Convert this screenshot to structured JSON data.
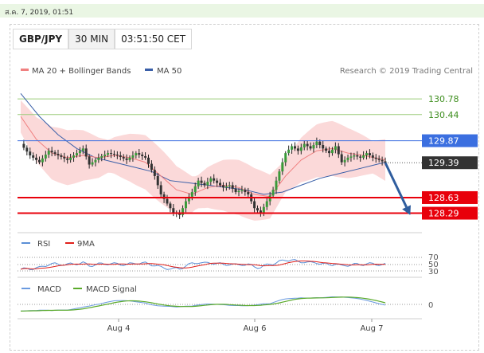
{
  "timestamp": "ส.ค. 7, 2019, 01:51",
  "header": {
    "pair": "GBP/JPY",
    "timeframe": "30 MIN",
    "time": "03:51:50 CET"
  },
  "credit": "Research © 2019 Trading Central",
  "colors": {
    "ma20": "#f08080",
    "ma50": "#3a5fa8",
    "band": "#fbd9d9",
    "resistance_blue": "#3b6fe0",
    "support_red": "#e8000b",
    "target_green": "#9ccc7a",
    "price_dark": "#333333",
    "rsi": "#5b8fd6",
    "rsi_9ma": "#e0201b",
    "macd": "#6a9ae0",
    "macd_signal": "#5aaa2a",
    "arrow": "#2f5d9e"
  },
  "chart_data": [
    {
      "type": "candlestick",
      "legend": [
        "MA 20 + Bollinger Bands",
        "MA 50"
      ],
      "legend_position": "top-left",
      "levels": [
        {
          "value": 130.78,
          "label": "130.78",
          "style": "green-line"
        },
        {
          "value": 130.44,
          "label": "130.44",
          "style": "green-line"
        },
        {
          "value": 129.87,
          "label": "129.87",
          "style": "blue-tag"
        },
        {
          "value": 129.39,
          "label": "129.39",
          "style": "current-price"
        },
        {
          "value": 128.63,
          "label": "128.63",
          "style": "red-tag"
        },
        {
          "value": 128.29,
          "label": "128.29",
          "style": "red-tag"
        }
      ],
      "x_ticks": [
        "Aug 4",
        "Aug 6",
        "Aug 7"
      ],
      "ylim": [
        127.9,
        131.2
      ],
      "close_path": [
        [
          0,
          129.8
        ],
        [
          3,
          129.55
        ],
        [
          6,
          129.4
        ],
        [
          9,
          129.65
        ],
        [
          12,
          129.55
        ],
        [
          15,
          129.45
        ],
        [
          17,
          129.55
        ],
        [
          20,
          129.7
        ],
        [
          22,
          129.35
        ],
        [
          25,
          129.5
        ],
        [
          28,
          129.6
        ],
        [
          31,
          129.55
        ],
        [
          34,
          129.45
        ],
        [
          37,
          129.6
        ],
        [
          40,
          129.5
        ],
        [
          43,
          129.1
        ],
        [
          45,
          128.7
        ],
        [
          47,
          128.5
        ],
        [
          49,
          128.3
        ],
        [
          51,
          128.25
        ],
        [
          53,
          128.55
        ],
        [
          55,
          128.75
        ],
        [
          57,
          129.0
        ],
        [
          59,
          128.9
        ],
        [
          61,
          129.05
        ],
        [
          63,
          128.95
        ],
        [
          65,
          128.85
        ],
        [
          67,
          128.9
        ],
        [
          69,
          128.75
        ],
        [
          71,
          128.8
        ],
        [
          73,
          128.7
        ],
        [
          75,
          128.4
        ],
        [
          77,
          128.3
        ],
        [
          79,
          128.55
        ],
        [
          81,
          128.8
        ],
        [
          83,
          129.2
        ],
        [
          85,
          129.6
        ],
        [
          87,
          129.75
        ],
        [
          89,
          129.65
        ],
        [
          91,
          129.8
        ],
        [
          93,
          129.7
        ],
        [
          95,
          129.85
        ],
        [
          97,
          129.7
        ],
        [
          99,
          129.6
        ],
        [
          101,
          129.75
        ],
        [
          103,
          129.4
        ],
        [
          105,
          129.5
        ],
        [
          107,
          129.55
        ],
        [
          109,
          129.5
        ],
        [
          111,
          129.6
        ],
        [
          113,
          129.5
        ],
        [
          115,
          129.45
        ],
        [
          117,
          129.39
        ]
      ],
      "ma50_path": [
        [
          0,
          130.9
        ],
        [
          6,
          130.4
        ],
        [
          12,
          130.0
        ],
        [
          18,
          129.7
        ],
        [
          24,
          129.5
        ],
        [
          30,
          129.4
        ],
        [
          36,
          129.3
        ],
        [
          42,
          129.2
        ],
        [
          48,
          129.0
        ],
        [
          54,
          128.95
        ],
        [
          60,
          128.9
        ],
        [
          66,
          128.85
        ],
        [
          72,
          128.8
        ],
        [
          78,
          128.7
        ],
        [
          84,
          128.75
        ],
        [
          90,
          128.9
        ],
        [
          96,
          129.05
        ],
        [
          102,
          129.15
        ],
        [
          108,
          129.25
        ],
        [
          114,
          129.35
        ],
        [
          117,
          129.4
        ]
      ],
      "ma20_path": [
        [
          0,
          130.4
        ],
        [
          5,
          129.9
        ],
        [
          10,
          129.6
        ],
        [
          15,
          129.5
        ],
        [
          20,
          129.55
        ],
        [
          25,
          129.5
        ],
        [
          30,
          129.55
        ],
        [
          35,
          129.5
        ],
        [
          40,
          129.4
        ],
        [
          45,
          129.1
        ],
        [
          50,
          128.8
        ],
        [
          55,
          128.7
        ],
        [
          60,
          128.85
        ],
        [
          65,
          128.9
        ],
        [
          70,
          128.85
        ],
        [
          75,
          128.7
        ],
        [
          80,
          128.65
        ],
        [
          85,
          129.1
        ],
        [
          90,
          129.45
        ],
        [
          95,
          129.65
        ],
        [
          100,
          129.7
        ],
        [
          105,
          129.6
        ],
        [
          110,
          129.55
        ],
        [
          117,
          129.45
        ]
      ],
      "forecast": {
        "from": [
          117,
          129.39
        ],
        "to": [
          125,
          128.25
        ]
      }
    },
    {
      "type": "line",
      "legend": [
        "RSI",
        "9MA"
      ],
      "y_ticks": [
        "70",
        "50",
        "30"
      ],
      "ylim": [
        20,
        80
      ]
    },
    {
      "type": "line",
      "legend": [
        "MACD",
        "MACD Signal"
      ],
      "y_ticks": [
        "0"
      ]
    }
  ]
}
